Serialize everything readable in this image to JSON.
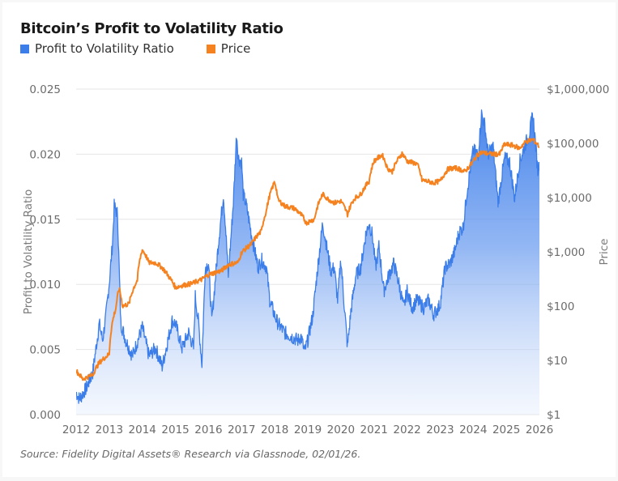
{
  "chart_data": {
    "type": "area+line",
    "title": "Bitcoin’s Profit to Volatility Ratio",
    "legend": [
      {
        "name": "Profit to Volatility Ratio",
        "color": "#3b7de9"
      },
      {
        "name": "Price",
        "color": "#f5821f"
      }
    ],
    "legend_position": "top-left",
    "x_ticks": [
      "2012",
      "2013",
      "2014",
      "2015",
      "2016",
      "2017",
      "2018",
      "2019",
      "2020",
      "2021",
      "2022",
      "2023",
      "2024",
      "2025",
      "2026"
    ],
    "xlim": [
      2012,
      2026
    ],
    "y_left": {
      "label": "Profit to Volatility Ratio",
      "ticks": [
        "0.000",
        "0.005",
        "0.010",
        "0.015",
        "0.020",
        "0.025"
      ],
      "ylim": [
        0,
        0.025
      ]
    },
    "y_right": {
      "label": "Price",
      "scale": "log",
      "ticks": [
        "$1",
        "$10",
        "$100",
        "$1,000",
        "$10,000",
        "$100,000",
        "$1,000,000"
      ],
      "ylim": [
        1,
        1000000
      ]
    },
    "grid": true,
    "series": [
      {
        "name": "Profit to Volatility Ratio",
        "axis": "left",
        "type": "area",
        "x": [
          2012.0,
          2012.1,
          2012.3,
          2012.5,
          2012.7,
          2012.8,
          2012.9,
          2013.0,
          2013.1,
          2013.15,
          2013.25,
          2013.3,
          2013.35,
          2013.5,
          2013.7,
          2014.0,
          2014.2,
          2014.4,
          2014.6,
          2014.9,
          2015.0,
          2015.2,
          2015.4,
          2015.55,
          2015.6,
          2015.7,
          2015.8,
          2015.9,
          2016.0,
          2016.1,
          2016.3,
          2016.45,
          2016.5,
          2016.6,
          2016.75,
          2016.85,
          2016.9,
          2017.0,
          2017.05,
          2017.15,
          2017.3,
          2017.5,
          2017.6,
          2017.75,
          2017.85,
          2018.0,
          2018.1,
          2018.3,
          2018.5,
          2018.7,
          2018.8,
          2018.9,
          2019.0,
          2019.15,
          2019.3,
          2019.45,
          2019.55,
          2019.7,
          2019.8,
          2019.9,
          2020.0,
          2020.1,
          2020.2,
          2020.3,
          2020.45,
          2020.6,
          2020.75,
          2020.85,
          2020.95,
          2021.05,
          2021.15,
          2021.3,
          2021.45,
          2021.6,
          2021.75,
          2021.9,
          2022.0,
          2022.15,
          2022.3,
          2022.5,
          2022.65,
          2022.8,
          2022.95,
          2023.0,
          2023.15,
          2023.3,
          2023.45,
          2023.55,
          2023.6,
          2023.7,
          2023.8,
          2023.9,
          2024.0,
          2024.15,
          2024.25,
          2024.35,
          2024.45,
          2024.6,
          2024.75,
          2024.85,
          2024.95,
          2025.1,
          2025.25,
          2025.4,
          2025.55,
          2025.7,
          2025.8,
          2025.9,
          2025.95,
          2026.0
        ],
        "values": [
          0.0017,
          0.0012,
          0.002,
          0.0032,
          0.007,
          0.0057,
          0.0076,
          0.0101,
          0.0132,
          0.016,
          0.0154,
          0.0113,
          0.007,
          0.0057,
          0.0045,
          0.0067,
          0.0045,
          0.0051,
          0.0037,
          0.0072,
          0.007,
          0.0051,
          0.0063,
          0.0051,
          0.0091,
          0.007,
          0.0039,
          0.0113,
          0.0116,
          0.0072,
          0.0132,
          0.0169,
          0.015,
          0.0107,
          0.0163,
          0.0216,
          0.0197,
          0.0194,
          0.0169,
          0.016,
          0.0138,
          0.0113,
          0.0119,
          0.0113,
          0.0088,
          0.0076,
          0.007,
          0.0063,
          0.006,
          0.0057,
          0.006,
          0.0048,
          0.0057,
          0.0076,
          0.0113,
          0.0147,
          0.0132,
          0.011,
          0.0113,
          0.0088,
          0.0119,
          0.0085,
          0.0052,
          0.0079,
          0.0107,
          0.0113,
          0.0138,
          0.0147,
          0.0138,
          0.0113,
          0.0129,
          0.0095,
          0.0107,
          0.0116,
          0.0101,
          0.0082,
          0.0095,
          0.0082,
          0.0088,
          0.0082,
          0.0088,
          0.0077,
          0.0082,
          0.0085,
          0.0113,
          0.0116,
          0.0126,
          0.0138,
          0.0141,
          0.0144,
          0.0169,
          0.0187,
          0.0203,
          0.02,
          0.0231,
          0.0222,
          0.02,
          0.0206,
          0.0163,
          0.0181,
          0.0197,
          0.0194,
          0.0166,
          0.0194,
          0.0206,
          0.0216,
          0.0231,
          0.0203,
          0.0187,
          0.0194
        ]
      },
      {
        "name": "Price",
        "axis": "right",
        "type": "line",
        "x": [
          2012.0,
          2012.2,
          2012.5,
          2012.7,
          2013.0,
          2013.2,
          2013.3,
          2013.4,
          2013.6,
          2013.85,
          2014.0,
          2014.2,
          2014.4,
          2014.6,
          2014.8,
          2015.0,
          2015.2,
          2015.5,
          2015.8,
          2016.0,
          2016.4,
          2016.6,
          2016.9,
          2017.0,
          2017.3,
          2017.6,
          2017.75,
          2017.9,
          2018.0,
          2018.1,
          2018.3,
          2018.6,
          2018.85,
          2018.95,
          2019.2,
          2019.45,
          2019.6,
          2019.8,
          2020.0,
          2020.2,
          2020.4,
          2020.6,
          2020.85,
          2021.0,
          2021.25,
          2021.4,
          2021.55,
          2021.85,
          2022.0,
          2022.3,
          2022.45,
          2022.8,
          2023.0,
          2023.25,
          2023.5,
          2023.75,
          2023.95,
          2024.2,
          2024.5,
          2024.8,
          2024.95,
          2025.2,
          2025.4,
          2025.6,
          2025.8,
          2025.95,
          2026.0
        ],
        "values": [
          6.4,
          4.5,
          5.4,
          9.0,
          13,
          90,
          210,
          100,
          110,
          300,
          1100,
          630,
          630,
          510,
          350,
          220,
          240,
          260,
          310,
          380,
          450,
          580,
          640,
          970,
          1400,
          2400,
          5700,
          13500,
          19500,
          9000,
          7000,
          6300,
          4400,
          3400,
          4000,
          11500,
          9500,
          8000,
          8600,
          4900,
          9500,
          11500,
          19800,
          47000,
          61000,
          35000,
          30000,
          65000,
          47000,
          42000,
          21000,
          18800,
          20000,
          34000,
          35000,
          30000,
          42000,
          68000,
          64000,
          63000,
          96000,
          92000,
          81000,
          108000,
          117000,
          95000,
          85000
        ]
      }
    ]
  },
  "footer": {
    "source": "Source: Fidelity Digital Assets® Research via Glassnode, 02/01/26."
  }
}
